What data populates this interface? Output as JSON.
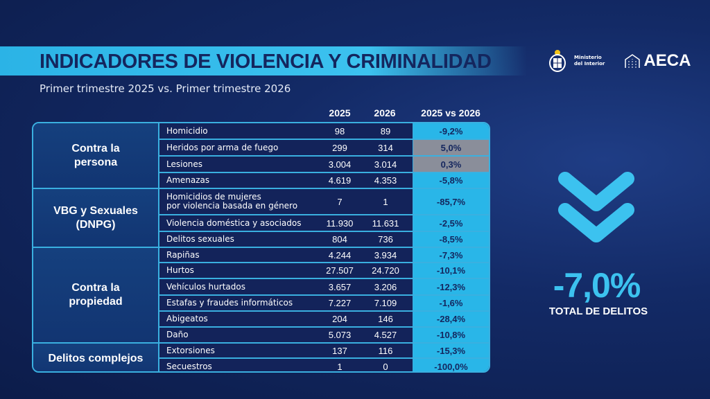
{
  "header": {
    "title": "INDICADORES DE VIOLENCIA Y CRIMINALIDAD",
    "subtitle": "Primer trimestre 2025 vs. Primer trimestre 2026",
    "logos": {
      "ministerio": "Ministerio\ndel Interior",
      "aeca": "AECA"
    }
  },
  "columns": {
    "y2025": "2025",
    "y2026": "2026",
    "compare": "2025 vs 2026"
  },
  "colors": {
    "accent": "#3cc2ef",
    "decrease_cell": "#29b6e8",
    "increase_cell": "#8a8e9a",
    "navy": "#14265e"
  },
  "groups": [
    {
      "label": "Contra la\npersona",
      "rows": [
        0,
        3
      ]
    },
    {
      "label": "VBG y Sexuales\n(DNPG)",
      "rows": [
        4,
        6
      ]
    },
    {
      "label": "Contra la\npropiedad",
      "rows": [
        7,
        12
      ]
    },
    {
      "label": "Delitos complejos",
      "rows": [
        13,
        14
      ]
    }
  ],
  "rows": [
    {
      "indicator": "Homicidio",
      "v2025": "98",
      "v2026": "89",
      "change": "-9,2%",
      "trend": "down"
    },
    {
      "indicator": "Heridos por arma de fuego",
      "v2025": "299",
      "v2026": "314",
      "change": "5,0%",
      "trend": "up"
    },
    {
      "indicator": "Lesiones",
      "v2025": "3.004",
      "v2026": "3.014",
      "change": "0,3%",
      "trend": "up"
    },
    {
      "indicator": "Amenazas",
      "v2025": "4.619",
      "v2026": "4.353",
      "change": "-5,8%",
      "trend": "down"
    },
    {
      "indicator": "Homicidios de mujeres\npor violencia basada en género",
      "v2025": "7",
      "v2026": "1",
      "change": "-85,7%",
      "trend": "down"
    },
    {
      "indicator": "Violencia doméstica y asociados",
      "v2025": "11.930",
      "v2026": "11.631",
      "change": "-2,5%",
      "trend": "down"
    },
    {
      "indicator": "Delitos sexuales",
      "v2025": "804",
      "v2026": "736",
      "change": "-8,5%",
      "trend": "down"
    },
    {
      "indicator": "Rapiñas",
      "v2025": "4.244",
      "v2026": "3.934",
      "change": "-7,3%",
      "trend": "down"
    },
    {
      "indicator": "Hurtos",
      "v2025": "27.507",
      "v2026": "24.720",
      "change": "-10,1%",
      "trend": "down"
    },
    {
      "indicator": "Vehículos hurtados",
      "v2025": "3.657",
      "v2026": "3.206",
      "change": "-12,3%",
      "trend": "down"
    },
    {
      "indicator": "Estafas y fraudes informáticos",
      "v2025": "7.227",
      "v2026": "7.109",
      "change": "-1,6%",
      "trend": "down"
    },
    {
      "indicator": "Abigeatos",
      "v2025": "204",
      "v2026": "146",
      "change": "-28,4%",
      "trend": "down"
    },
    {
      "indicator": "Daño",
      "v2025": "5.073",
      "v2026": "4.527",
      "change": "-10,8%",
      "trend": "down"
    },
    {
      "indicator": "Extorsiones",
      "v2025": "137",
      "v2026": "116",
      "change": "-15,3%",
      "trend": "down"
    },
    {
      "indicator": "Secuestros",
      "v2025": "1",
      "v2026": "0",
      "change": "-100,0%",
      "trend": "down"
    }
  ],
  "total": {
    "value": "-7,0%",
    "label": "TOTAL DE DELITOS",
    "icon": "double-chevron-down-icon"
  }
}
